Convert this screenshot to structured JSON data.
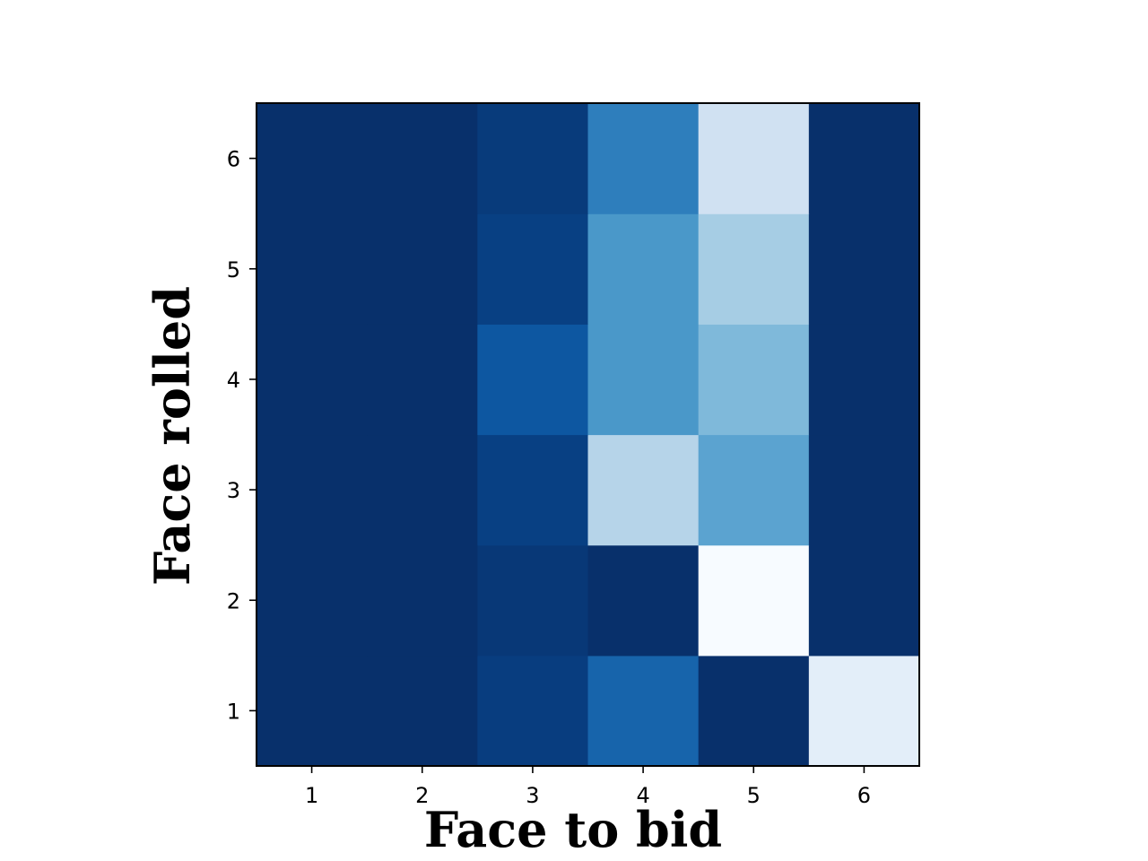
{
  "chart_data": {
    "type": "heatmap",
    "xlabel": "Face to bid",
    "ylabel": "Face rolled",
    "x_categories": [
      "1",
      "2",
      "3",
      "4",
      "5",
      "6"
    ],
    "y_categories": [
      "1",
      "2",
      "3",
      "4",
      "5",
      "6"
    ],
    "colormap": "Blues_r",
    "value_range": [
      0,
      1
    ],
    "grid": false,
    "colorbar": false,
    "values": [
      [
        0.0,
        0.0,
        0.05,
        0.2,
        0.0,
        0.9
      ],
      [
        0.0,
        0.0,
        0.03,
        0.0,
        1.0,
        0.0
      ],
      [
        0.0,
        0.0,
        0.06,
        0.7,
        0.45,
        0.0
      ],
      [
        0.0,
        0.0,
        0.15,
        0.4,
        0.55,
        0.0
      ],
      [
        0.0,
        0.0,
        0.06,
        0.4,
        0.65,
        0.0
      ],
      [
        0.0,
        0.0,
        0.04,
        0.3,
        0.8,
        0.0
      ]
    ]
  }
}
